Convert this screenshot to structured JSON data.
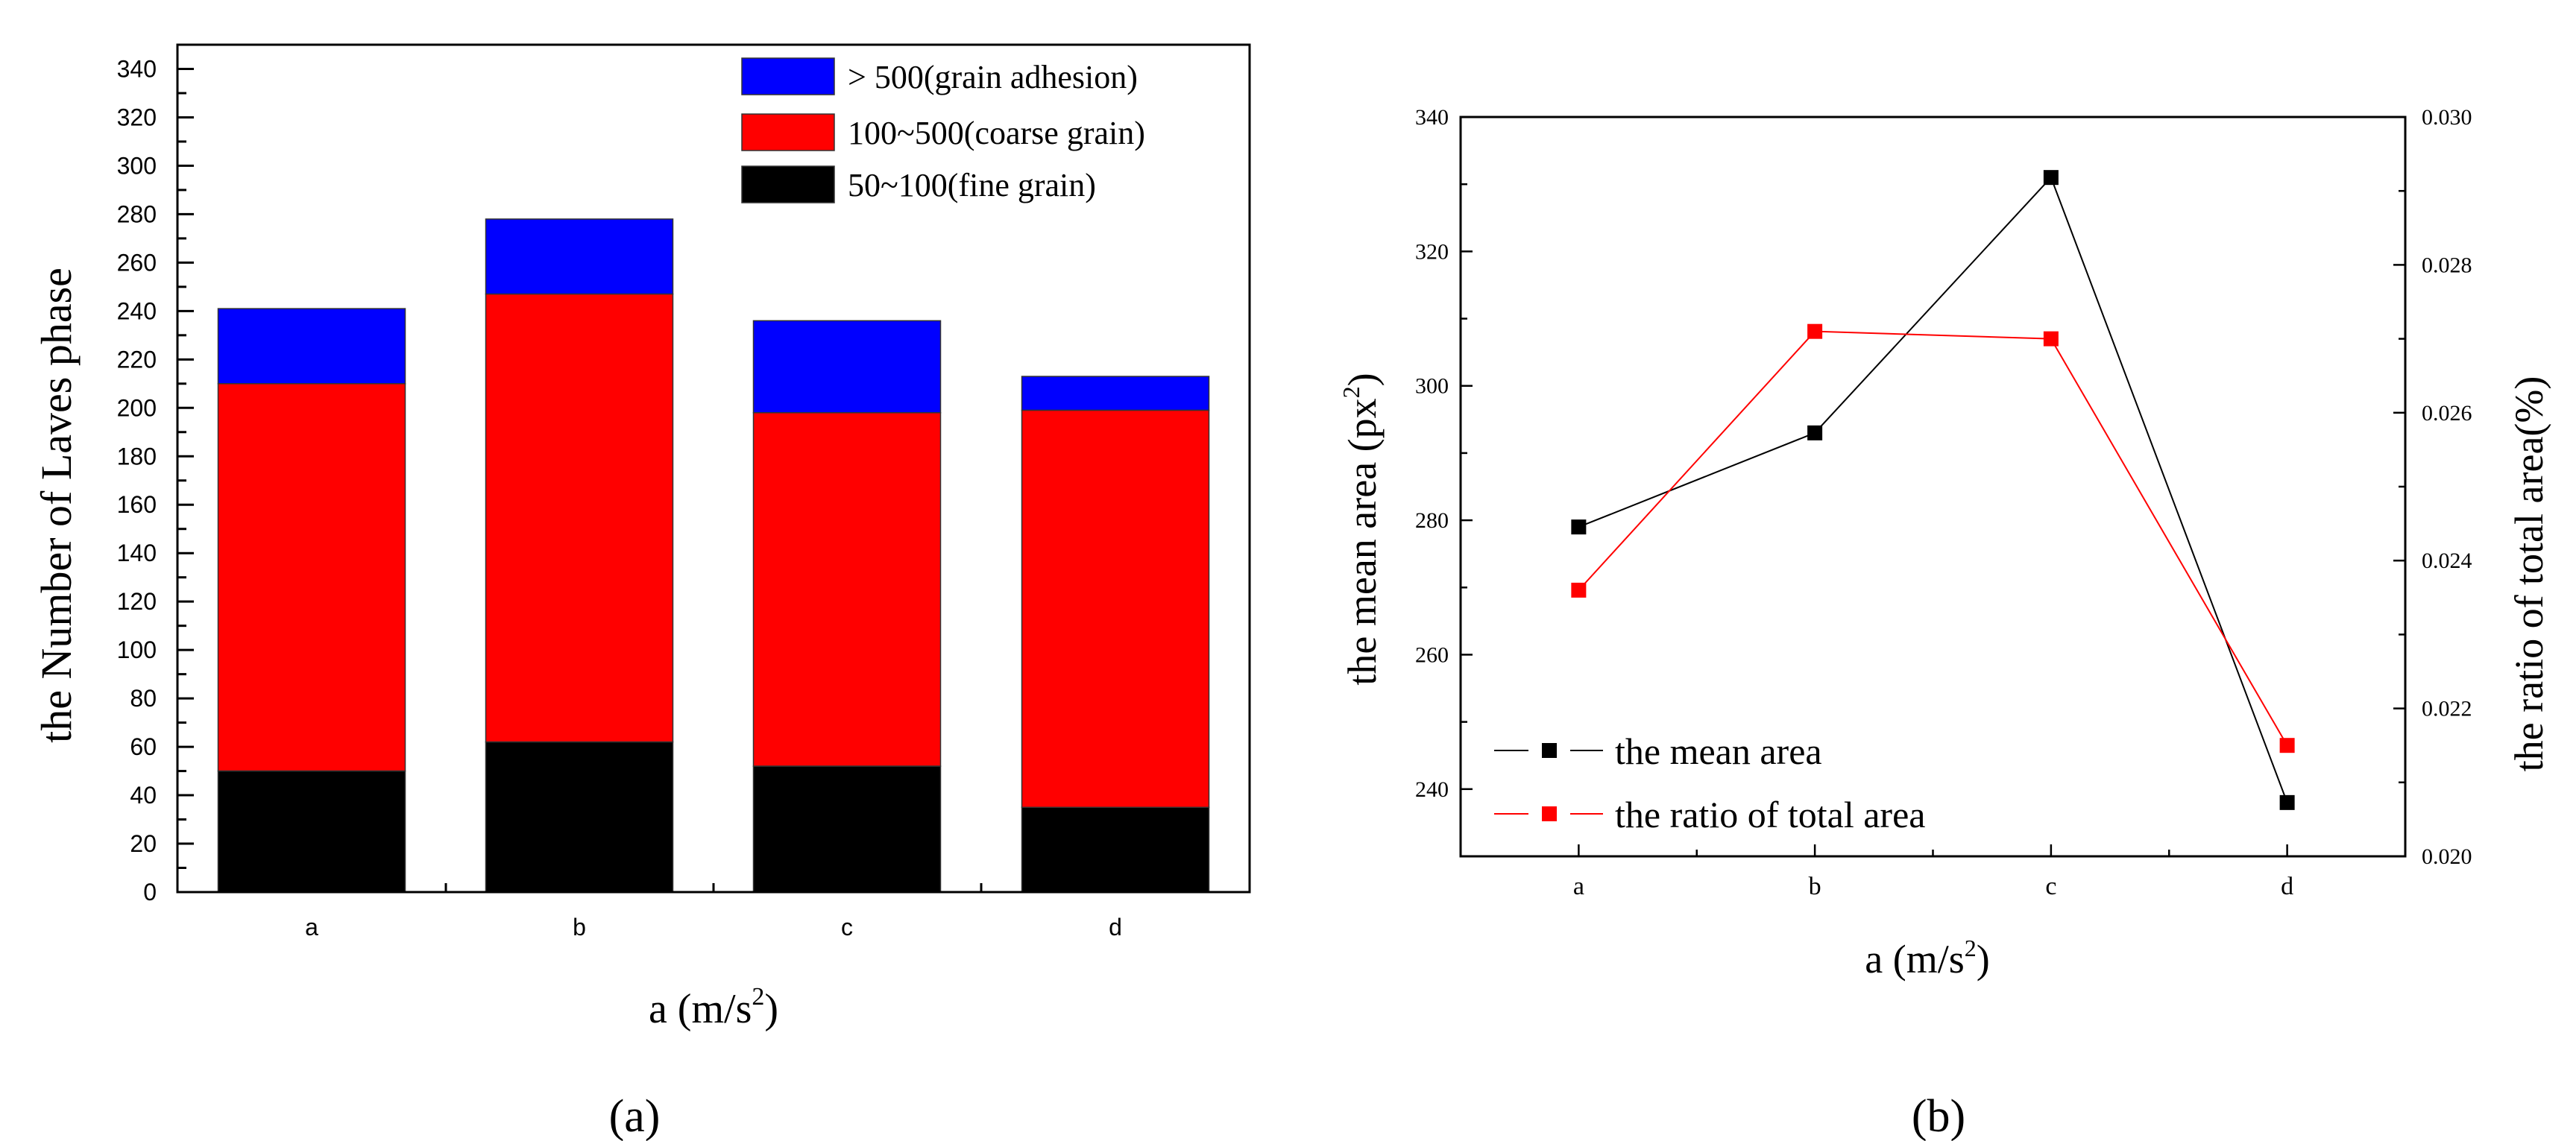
{
  "chart_data": [
    {
      "type": "bar",
      "stacked": true,
      "panel_label": "(a)",
      "panel_letter": "a",
      "categories": [
        "a",
        "b",
        "c",
        "d"
      ],
      "series": [
        {
          "name": "50~100(fine grain)",
          "color": "#000000",
          "cumulative": [
            50,
            62,
            52,
            35
          ]
        },
        {
          "name": "100~500(coarse grain)",
          "color": "#ff0000",
          "cumulative": [
            210,
            247,
            198,
            199
          ]
        },
        {
          "name": "> 500(grain adhesion)",
          "color": "#0000ff",
          "cumulative": [
            241,
            278,
            236,
            213
          ]
        }
      ],
      "xlabel": "a (m/s",
      "xlabel_sup": "2",
      "xlabel_end": ")",
      "ylabel": "the Number of Laves phase",
      "ylim": [
        0,
        350
      ],
      "yticks": [
        "0",
        "20",
        "40",
        "60",
        "80",
        "100",
        "120",
        "140",
        "160",
        "180",
        "200",
        "220",
        "240",
        "260",
        "280",
        "300",
        "320",
        "340"
      ],
      "grid": false,
      "legend_position": "top-right"
    },
    {
      "type": "line",
      "panel_label": "(b)",
      "panel_letter": "b",
      "categories": [
        "a",
        "b",
        "c",
        "d"
      ],
      "series": [
        {
          "name": "the mean area",
          "color": "#000000",
          "axis": "left",
          "values": [
            279,
            293,
            331,
            238
          ]
        },
        {
          "name": "the ratio of total area",
          "color": "#ff0000",
          "axis": "right",
          "values": [
            0.0236,
            0.0271,
            0.027,
            0.0215
          ]
        }
      ],
      "xlabel": "a (m/s",
      "xlabel_sup": "2",
      "xlabel_end": ")",
      "ylabel": "the mean area (px",
      "ylabel_sup": "2",
      "ylabel_end": ")",
      "y2label": "the ratio of total area(%)",
      "ylim": [
        230,
        340
      ],
      "yticks": [
        "240",
        "260",
        "280",
        "300",
        "320",
        "340"
      ],
      "y2lim": [
        0.02,
        0.03
      ],
      "y2ticks": [
        "0.020",
        "0.022",
        "0.024",
        "0.026",
        "0.028",
        "0.030"
      ],
      "grid": false,
      "legend_position": "bottom-left"
    }
  ]
}
